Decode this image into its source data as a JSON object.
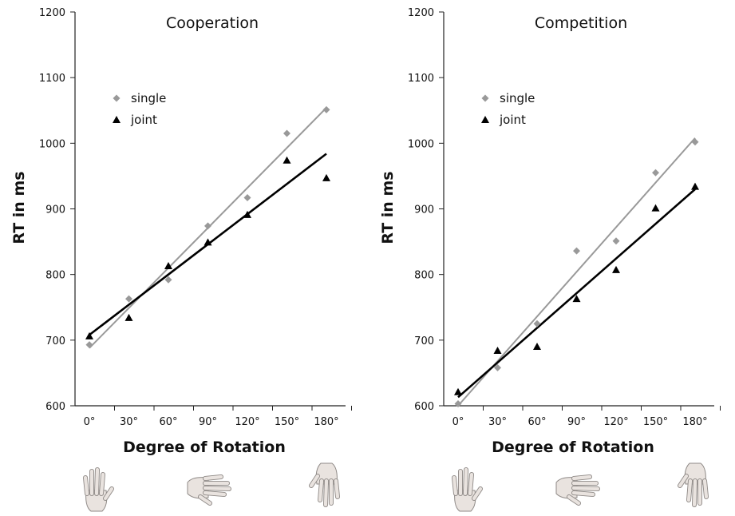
{
  "chart_data": [
    {
      "type": "scatter",
      "title": "Cooperation",
      "xlabel": "Degree of Rotation",
      "ylabel": "RT in ms",
      "categories": [
        "0°",
        "30°",
        "60°",
        "90°",
        "120°",
        "150°",
        "180°"
      ],
      "ylim": [
        600,
        1200
      ],
      "yticks": [
        "600",
        "700",
        "800",
        "900",
        "1000",
        "1100",
        "1200"
      ],
      "grid": false,
      "legend_position": "top-left",
      "series": [
        {
          "name": "single",
          "marker": "diamond",
          "color": "#999999",
          "values": [
            693,
            763,
            792,
            874,
            917,
            1015,
            1051
          ],
          "trendline": [
            688,
            1054
          ]
        },
        {
          "name": "joint",
          "marker": "triangle",
          "color": "#000000",
          "values": [
            706,
            734,
            813,
            849,
            891,
            974,
            947
          ],
          "trendline": [
            708,
            984
          ]
        }
      ],
      "below_axis_icons": [
        "hand-upright-icon",
        "hand-sideways-icon",
        "hand-inverted-icon"
      ]
    },
    {
      "type": "scatter",
      "title": "Competition",
      "xlabel": "Degree of Rotation",
      "ylabel": "RT in ms",
      "categories": [
        "0°",
        "30°",
        "60°",
        "90°",
        "120°",
        "150°",
        "180°"
      ],
      "ylim": [
        600,
        1200
      ],
      "yticks": [
        "600",
        "700",
        "800",
        "900",
        "1000",
        "1100",
        "1200"
      ],
      "grid": false,
      "legend_position": "top-left",
      "series": [
        {
          "name": "single",
          "marker": "diamond",
          "color": "#999999",
          "values": [
            603,
            658,
            725,
            836,
            851,
            955,
            1002
          ],
          "trendline": [
            600,
            1008
          ]
        },
        {
          "name": "joint",
          "marker": "triangle",
          "color": "#000000",
          "values": [
            621,
            684,
            690,
            763,
            807,
            901,
            934
          ],
          "trendline": [
            613,
            930
          ]
        }
      ],
      "below_axis_icons": [
        "hand-upright-icon",
        "hand-sideways-icon",
        "hand-inverted-icon"
      ]
    }
  ]
}
